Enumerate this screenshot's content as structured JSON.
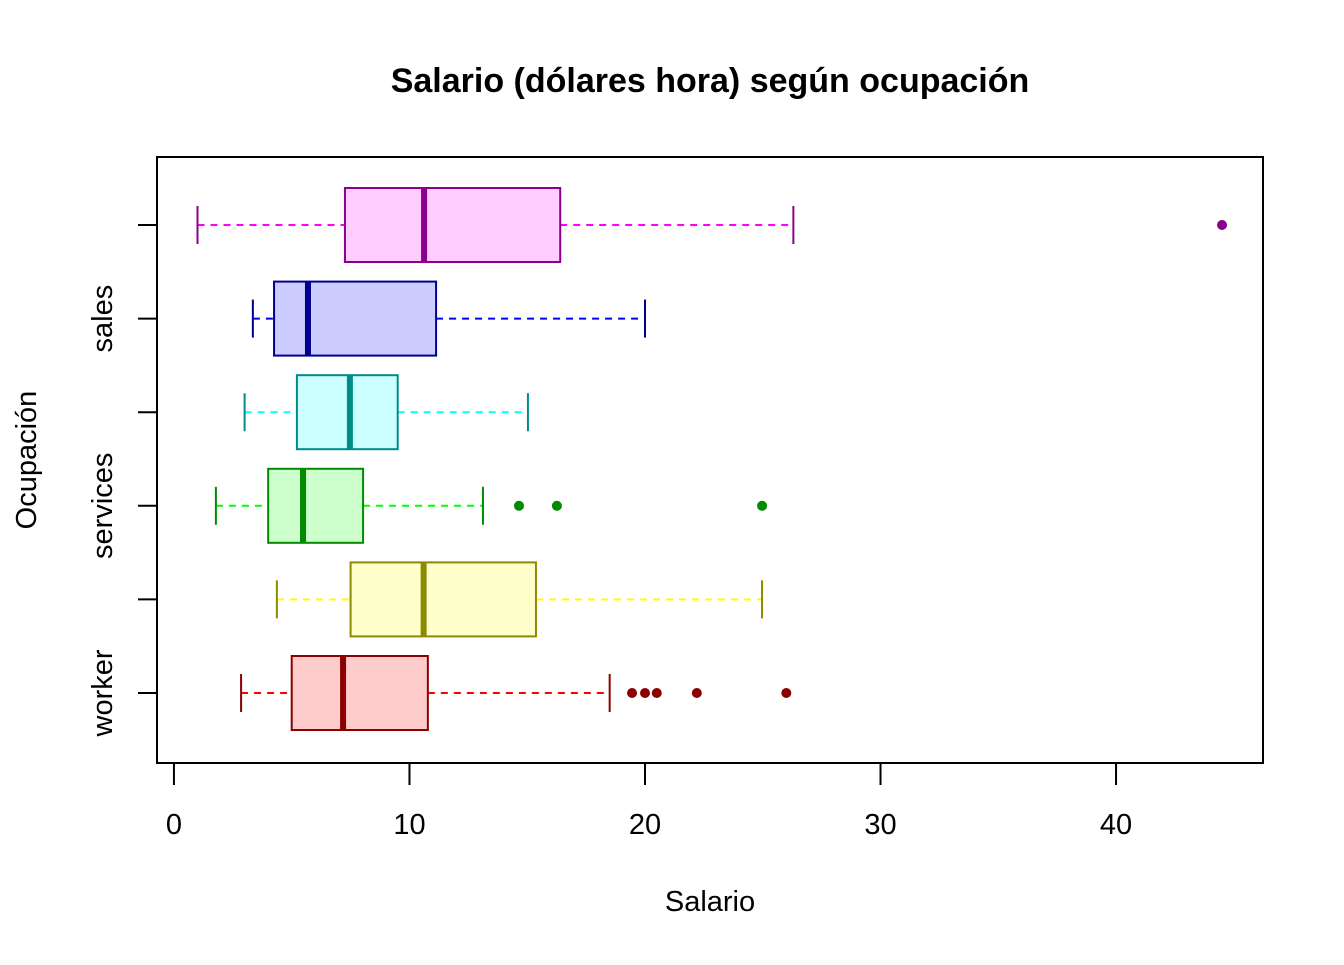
{
  "chart_data": {
    "type": "boxplot",
    "orientation": "horizontal",
    "title": "Salario (dólares hora) según ocupación",
    "xlabel": "Salario",
    "ylabel": "Ocupación",
    "xlim": [
      -0.72,
      46.24
    ],
    "xticks": [
      0,
      10,
      20,
      30,
      40
    ],
    "ytick_labels": [
      "worker",
      "",
      "services",
      "",
      "sales",
      ""
    ],
    "series": [
      {
        "name": "worker",
        "min": 2.85,
        "q1": 5.0,
        "median": 7.18,
        "q3": 10.78,
        "max": 18.5,
        "outliers": [
          19.45,
          20.0,
          20.5,
          22.2,
          26.0
        ],
        "fill": "#FFCCCC",
        "border": "#8B0000",
        "whisker": "#FF0000"
      },
      {
        "name": "",
        "min": 4.37,
        "q1": 7.5,
        "median": 10.6,
        "q3": 15.37,
        "max": 24.97,
        "outliers": [],
        "fill": "#FFFFCC",
        "border": "#8B8B00",
        "whisker": "#FFFF00"
      },
      {
        "name": "services",
        "min": 1.78,
        "q1": 4.0,
        "median": 5.48,
        "q3": 8.03,
        "max": 13.12,
        "outliers": [
          14.65,
          16.26,
          24.97
        ],
        "fill": "#CCFFCC",
        "border": "#008B00",
        "whisker": "#00FF00"
      },
      {
        "name": "",
        "min": 3.0,
        "q1": 5.22,
        "median": 7.47,
        "q3": 9.5,
        "max": 15.03,
        "outliers": [],
        "fill": "#CCFFFF",
        "border": "#008B8B",
        "whisker": "#00FFFF"
      },
      {
        "name": "sales",
        "min": 3.35,
        "q1": 4.25,
        "median": 5.69,
        "q3": 11.13,
        "max": 20.0,
        "outliers": [],
        "fill": "#CCCCFF",
        "border": "#00008B",
        "whisker": "#0000FF"
      },
      {
        "name": "",
        "min": 1.0,
        "q1": 7.26,
        "median": 10.62,
        "q3": 16.4,
        "max": 26.3,
        "outliers": [
          44.5
        ],
        "fill": "#FFCCFF",
        "border": "#8B008B",
        "whisker": "#FF00FF"
      }
    ]
  }
}
